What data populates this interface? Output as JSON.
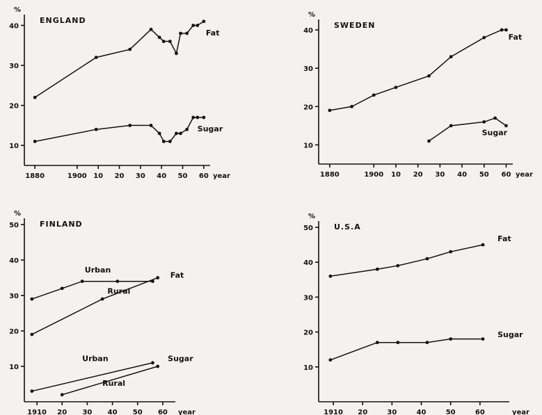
{
  "chart_data": [
    {
      "type": "line",
      "title": "ENGLAND",
      "ylabel": "%",
      "xlabel": "year",
      "ylim": [
        5,
        42
      ],
      "xlim": [
        1875,
        1963
      ],
      "yticks": [
        10,
        20,
        30,
        40
      ],
      "ytick_labels": [
        "10",
        "20",
        "30",
        "40"
      ],
      "xticks": [
        1880,
        1900,
        1910,
        1920,
        1930,
        1940,
        1950,
        1960
      ],
      "xtick_labels": [
        "1880",
        "1900",
        "10",
        "20",
        "30",
        "40",
        "50",
        "60"
      ],
      "series": [
        {
          "name": "Fat",
          "x": [
            1880,
            1909,
            1925,
            1935,
            1939,
            1941,
            1944,
            1947,
            1949,
            1952,
            1955,
            1957,
            1960
          ],
          "y": [
            22,
            32,
            34,
            39,
            37,
            36,
            36,
            33,
            38,
            38,
            40,
            40,
            41
          ]
        },
        {
          "name": "Sugar",
          "x": [
            1880,
            1909,
            1925,
            1935,
            1939,
            1941,
            1944,
            1947,
            1949,
            1952,
            1955,
            1957,
            1960
          ],
          "y": [
            11,
            14,
            15,
            15,
            13,
            11,
            11,
            13,
            13,
            14,
            17,
            17,
            17
          ]
        }
      ],
      "annotations": [
        {
          "text": "Fat",
          "x": 1961,
          "y": 37.5
        },
        {
          "text": "Sugar",
          "x": 1957,
          "y": 13.5
        }
      ]
    },
    {
      "type": "line",
      "title": "SWEDEN",
      "ylabel": "%",
      "xlabel": "year",
      "ylim": [
        5,
        42
      ],
      "xlim": [
        1875,
        1963
      ],
      "yticks": [
        10,
        20,
        30,
        40
      ],
      "ytick_labels": [
        "10",
        "20",
        "30",
        "40"
      ],
      "xticks": [
        1880,
        1900,
        1910,
        1920,
        1930,
        1940,
        1950,
        1960
      ],
      "xtick_labels": [
        "1880",
        "1900",
        "10",
        "20",
        "30",
        "40",
        "50",
        "60"
      ],
      "series": [
        {
          "name": "Fat",
          "x": [
            1880,
            1890,
            1900,
            1910,
            1925,
            1935,
            1950,
            1958,
            1960
          ],
          "y": [
            19,
            20,
            23,
            25,
            28,
            33,
            38,
            40,
            40
          ]
        },
        {
          "name": "Sugar",
          "x": [
            1925,
            1935,
            1950,
            1955,
            1960
          ],
          "y": [
            11,
            15,
            16,
            17,
            15
          ]
        }
      ],
      "annotations": [
        {
          "text": "Fat",
          "x": 1961,
          "y": 37.5
        },
        {
          "text": "Sugar",
          "x": 1949,
          "y": 12.5
        }
      ]
    },
    {
      "type": "line",
      "title": "FINLAND",
      "ylabel": "%",
      "xlabel": "year",
      "ylim": [
        0,
        51
      ],
      "xlim": [
        1905,
        1965
      ],
      "yticks": [
        10,
        20,
        30,
        40,
        50
      ],
      "ytick_labels": [
        "10",
        "20",
        "30",
        "40",
        "50"
      ],
      "xticks": [
        1910,
        1920,
        1930,
        1940,
        1950,
        1960
      ],
      "xtick_labels": [
        "1910",
        "20",
        "30",
        "40",
        "50",
        "60"
      ],
      "series": [
        {
          "name": "Urban fat",
          "x": [
            1908,
            1920,
            1928,
            1942,
            1956
          ],
          "y": [
            29,
            32,
            34,
            34,
            34
          ]
        },
        {
          "name": "Rural fat",
          "x": [
            1908,
            1936,
            1958
          ],
          "y": [
            19,
            29,
            35
          ]
        },
        {
          "name": "Urban sugar",
          "x": [
            1908,
            1956
          ],
          "y": [
            3,
            11
          ]
        },
        {
          "name": "Rural sugar",
          "x": [
            1920,
            1958
          ],
          "y": [
            2,
            10
          ]
        }
      ],
      "annotations": [
        {
          "text": "Urban",
          "x": 1929,
          "y": 36.5
        },
        {
          "text": "Rural",
          "x": 1938,
          "y": 30.5
        },
        {
          "text": "Fat",
          "x": 1963,
          "y": 35
        },
        {
          "text": "Urban",
          "x": 1928,
          "y": 11.5
        },
        {
          "text": "Rural",
          "x": 1936,
          "y": 4.5
        },
        {
          "text": "Sugar",
          "x": 1962,
          "y": 11.5
        }
      ]
    },
    {
      "type": "line",
      "title": "U.S.A",
      "ylabel": "%",
      "xlabel": "year",
      "ylim": [
        0,
        51
      ],
      "xlim": [
        1905,
        1970
      ],
      "yticks": [
        10,
        20,
        30,
        40,
        50
      ],
      "ytick_labels": [
        "10",
        "20",
        "30",
        "40",
        "50"
      ],
      "xticks": [
        1910,
        1920,
        1930,
        1940,
        1950,
        1960
      ],
      "xtick_labels": [
        "1910",
        "20",
        "30",
        "40",
        "50",
        "60"
      ],
      "series": [
        {
          "name": "Fat",
          "x": [
            1909,
            1925,
            1932,
            1942,
            1950,
            1961
          ],
          "y": [
            36,
            38,
            39,
            41,
            43,
            45
          ]
        },
        {
          "name": "Sugar",
          "x": [
            1909,
            1925,
            1932,
            1942,
            1950,
            1961
          ],
          "y": [
            12,
            17,
            17,
            17,
            18,
            18
          ]
        }
      ],
      "annotations": [
        {
          "text": "Fat",
          "x": 1966,
          "y": 46
        },
        {
          "text": "Sugar",
          "x": 1966,
          "y": 18.5
        }
      ]
    }
  ]
}
